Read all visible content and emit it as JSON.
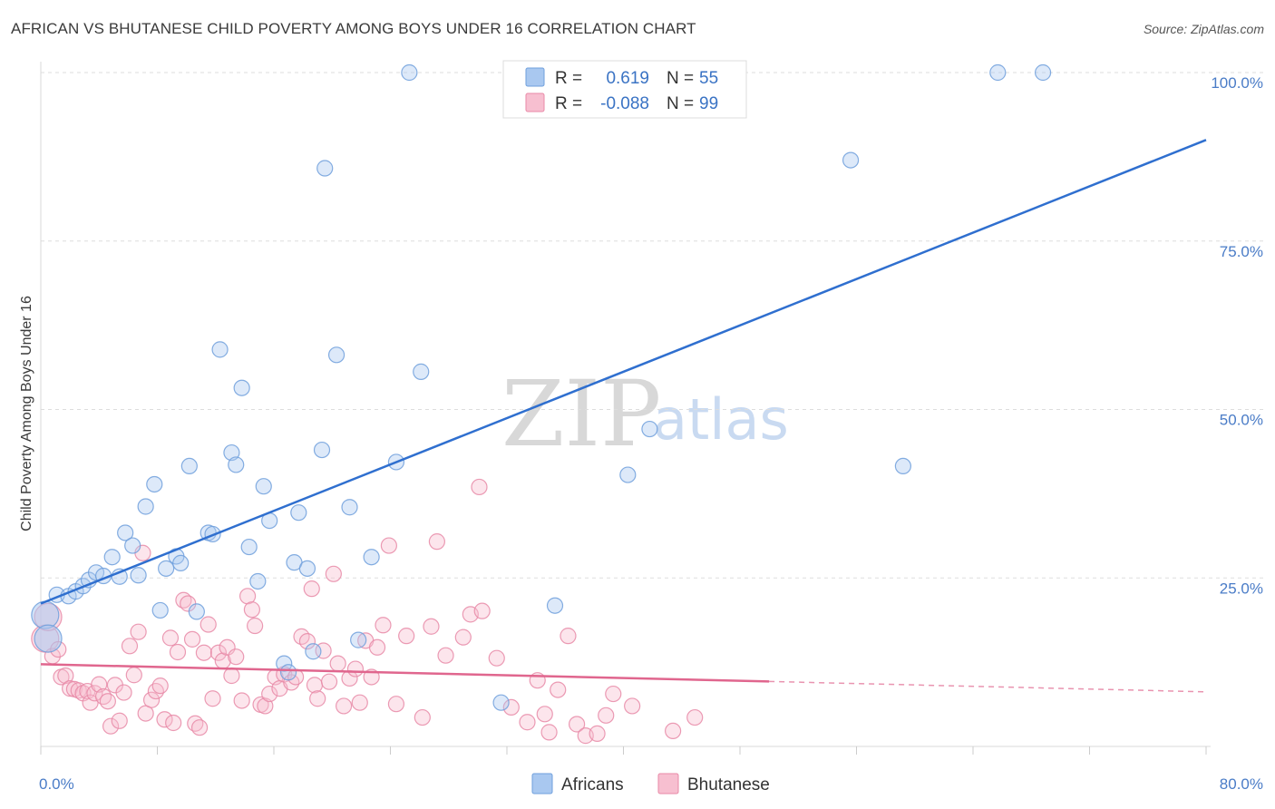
{
  "header": {
    "title": "AFRICAN VS BHUTANESE CHILD POVERTY AMONG BOYS UNDER 16 CORRELATION CHART",
    "source": "Source: ZipAtlas.com"
  },
  "watermark": {
    "zip": "ZIP",
    "atlas": "atlas"
  },
  "legend": {
    "rows": [
      {
        "r_label": "R =",
        "r_value": "0.619",
        "n_label": "N =",
        "n_value": "55",
        "color": "#a9c8f0",
        "stroke": "#6f9fdc"
      },
      {
        "r_label": "R =",
        "r_value": "-0.088",
        "n_label": "N =",
        "n_value": "99",
        "color": "#f7bfd0",
        "stroke": "#e88aa7"
      }
    ]
  },
  "bottom_legend": {
    "africans": "Africans",
    "bhutanese": "Bhutanese"
  },
  "chart_data": {
    "type": "scatter",
    "title": "AFRICAN VS BHUTANESE CHILD POVERTY AMONG BOYS UNDER 16 CORRELATION CHART",
    "xlabel": "",
    "ylabel": "Child Poverty Among Boys Under 16",
    "xlim": [
      0,
      80
    ],
    "ylim": [
      0,
      105
    ],
    "x_tick_labels": [
      "0.0%",
      "80.0%"
    ],
    "y_tick_labels": [
      "25.0%",
      "50.0%",
      "75.0%",
      "100.0%"
    ],
    "y_ticks": [
      25,
      50,
      75,
      100
    ],
    "grid": true,
    "legend_position": "top-center",
    "series": [
      {
        "name": "Africans",
        "color": "#6f9fdc",
        "fill": "#a9c8f0",
        "r": 0.619,
        "n": 55,
        "trend": {
          "x": [
            0,
            80
          ],
          "y": [
            21.2,
            90
          ]
        },
        "points": [
          [
            0.3,
            19.5
          ],
          [
            0.5,
            16.0
          ],
          [
            1.1,
            22.5
          ],
          [
            1.9,
            22.3
          ],
          [
            2.4,
            23.0
          ],
          [
            2.9,
            23.8
          ],
          [
            3.3,
            24.7
          ],
          [
            3.8,
            25.8
          ],
          [
            4.3,
            25.3
          ],
          [
            4.9,
            28.1
          ],
          [
            5.4,
            25.2
          ],
          [
            5.8,
            31.7
          ],
          [
            6.3,
            29.8
          ],
          [
            6.7,
            25.4
          ],
          [
            7.2,
            35.6
          ],
          [
            7.8,
            38.9
          ],
          [
            8.2,
            20.2
          ],
          [
            8.6,
            26.4
          ],
          [
            9.3,
            28.2
          ],
          [
            9.6,
            27.2
          ],
          [
            10.2,
            41.6
          ],
          [
            10.7,
            20.0
          ],
          [
            11.5,
            31.7
          ],
          [
            11.8,
            31.5
          ],
          [
            12.3,
            58.9
          ],
          [
            13.1,
            43.6
          ],
          [
            13.4,
            41.8
          ],
          [
            13.8,
            53.2
          ],
          [
            14.3,
            29.6
          ],
          [
            14.9,
            24.5
          ],
          [
            15.3,
            38.6
          ],
          [
            15.7,
            33.5
          ],
          [
            16.7,
            12.3
          ],
          [
            17.0,
            11.0
          ],
          [
            17.4,
            27.3
          ],
          [
            17.7,
            34.7
          ],
          [
            18.3,
            26.4
          ],
          [
            18.7,
            14.1
          ],
          [
            19.3,
            44.0
          ],
          [
            19.5,
            85.8
          ],
          [
            20.3,
            58.1
          ],
          [
            21.2,
            35.5
          ],
          [
            21.8,
            15.8
          ],
          [
            22.7,
            28.1
          ],
          [
            24.4,
            42.2
          ],
          [
            25.3,
            100
          ],
          [
            26.1,
            55.6
          ],
          [
            31.6,
            6.5
          ],
          [
            35.3,
            20.9
          ],
          [
            40.3,
            40.3
          ],
          [
            41.8,
            47.1
          ],
          [
            55.6,
            87.0
          ],
          [
            59.2,
            41.6
          ],
          [
            65.7,
            100
          ],
          [
            68.8,
            100
          ]
        ]
      },
      {
        "name": "Bhutanese",
        "color": "#e88aa7",
        "fill": "#f7bfd0",
        "r": -0.088,
        "n": 99,
        "trend": {
          "x": [
            0,
            80
          ],
          "y": [
            12.2,
            8.1
          ],
          "solid_until_x": 50
        },
        "points": [
          [
            0.3,
            16.0
          ],
          [
            0.5,
            19.2
          ],
          [
            0.8,
            13.4
          ],
          [
            1.2,
            14.4
          ],
          [
            1.4,
            10.3
          ],
          [
            1.7,
            10.5
          ],
          [
            2.0,
            8.6
          ],
          [
            2.3,
            8.5
          ],
          [
            2.6,
            8.3
          ],
          [
            2.9,
            7.9
          ],
          [
            3.2,
            8.2
          ],
          [
            3.4,
            6.5
          ],
          [
            3.7,
            7.9
          ],
          [
            4.0,
            9.2
          ],
          [
            4.3,
            7.4
          ],
          [
            4.6,
            6.7
          ],
          [
            4.8,
            3.0
          ],
          [
            5.1,
            9.1
          ],
          [
            5.4,
            3.8
          ],
          [
            5.7,
            8.0
          ],
          [
            6.1,
            14.9
          ],
          [
            6.4,
            10.6
          ],
          [
            6.7,
            17.0
          ],
          [
            7.0,
            28.7
          ],
          [
            7.2,
            4.9
          ],
          [
            7.6,
            6.9
          ],
          [
            7.9,
            8.2
          ],
          [
            8.2,
            9.0
          ],
          [
            8.5,
            4.0
          ],
          [
            8.9,
            16.1
          ],
          [
            9.1,
            3.5
          ],
          [
            9.4,
            14.0
          ],
          [
            9.8,
            21.7
          ],
          [
            10.1,
            21.2
          ],
          [
            10.4,
            15.9
          ],
          [
            10.6,
            3.4
          ],
          [
            10.9,
            2.8
          ],
          [
            11.2,
            13.9
          ],
          [
            11.5,
            18.1
          ],
          [
            11.8,
            7.1
          ],
          [
            12.2,
            13.9
          ],
          [
            12.5,
            12.7
          ],
          [
            12.8,
            14.7
          ],
          [
            13.1,
            10.5
          ],
          [
            13.4,
            13.3
          ],
          [
            13.8,
            6.8
          ],
          [
            14.2,
            22.3
          ],
          [
            14.5,
            20.3
          ],
          [
            14.7,
            17.9
          ],
          [
            15.1,
            6.2
          ],
          [
            15.4,
            6.0
          ],
          [
            15.7,
            7.8
          ],
          [
            16.1,
            10.3
          ],
          [
            16.4,
            8.6
          ],
          [
            16.7,
            10.7
          ],
          [
            17.2,
            9.5
          ],
          [
            17.5,
            10.3
          ],
          [
            17.9,
            16.3
          ],
          [
            18.3,
            15.6
          ],
          [
            18.6,
            23.4
          ],
          [
            18.8,
            9.1
          ],
          [
            19.0,
            7.1
          ],
          [
            19.4,
            14.2
          ],
          [
            19.8,
            9.6
          ],
          [
            20.1,
            25.6
          ],
          [
            20.4,
            12.3
          ],
          [
            20.8,
            6.0
          ],
          [
            21.2,
            10.1
          ],
          [
            21.6,
            11.5
          ],
          [
            21.9,
            6.5
          ],
          [
            22.3,
            15.7
          ],
          [
            22.7,
            10.3
          ],
          [
            23.1,
            14.7
          ],
          [
            23.5,
            18.0
          ],
          [
            23.9,
            29.8
          ],
          [
            24.4,
            6.3
          ],
          [
            25.1,
            16.4
          ],
          [
            26.2,
            4.3
          ],
          [
            26.8,
            17.8
          ],
          [
            27.2,
            30.4
          ],
          [
            27.8,
            13.5
          ],
          [
            29.0,
            16.2
          ],
          [
            29.5,
            19.6
          ],
          [
            30.1,
            38.5
          ],
          [
            30.3,
            20.1
          ],
          [
            31.3,
            13.1
          ],
          [
            32.3,
            5.8
          ],
          [
            33.4,
            3.6
          ],
          [
            34.1,
            9.8
          ],
          [
            34.6,
            4.8
          ],
          [
            34.9,
            2.1
          ],
          [
            35.5,
            8.4
          ],
          [
            36.2,
            16.4
          ],
          [
            36.8,
            3.3
          ],
          [
            37.4,
            1.6
          ],
          [
            38.2,
            1.9
          ],
          [
            38.8,
            4.6
          ],
          [
            39.3,
            7.8
          ],
          [
            40.6,
            6.0
          ],
          [
            43.4,
            2.3
          ],
          [
            44.9,
            4.3
          ]
        ]
      }
    ]
  }
}
